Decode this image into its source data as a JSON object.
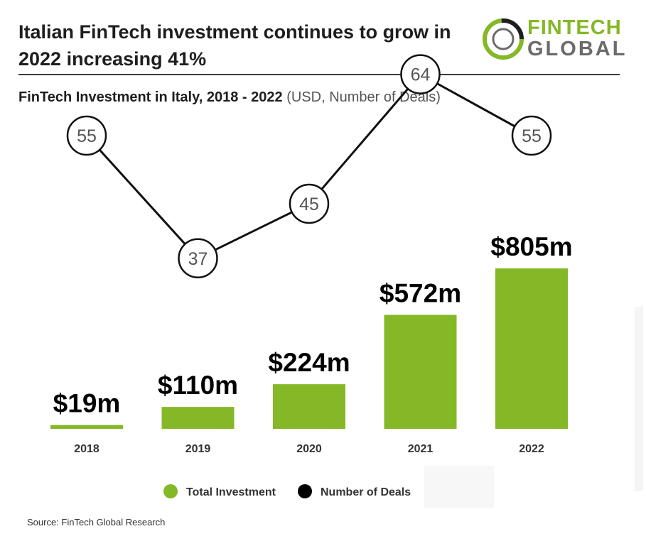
{
  "header": {
    "title": "Italian FinTech investment continues to grow in 2022 increasing 41%",
    "subtitle_main": "FinTech Investment in Italy, 2018 - 2022",
    "subtitle_units": "(USD, Number of Deals)"
  },
  "logo": {
    "word1": "FINTECH",
    "word2": "GLOBAL"
  },
  "colors": {
    "bar": "#84b826",
    "line": "#111111",
    "logo_ring": "#84b826"
  },
  "chart_data": {
    "type": "bar",
    "categories": [
      "2018",
      "2019",
      "2020",
      "2021",
      "2022"
    ],
    "series": [
      {
        "name": "Total Investment",
        "type": "bar",
        "values": [
          19,
          110,
          224,
          572,
          805
        ],
        "labels": [
          "$19m",
          "$110m",
          "$224m",
          "$572m",
          "$805m"
        ]
      },
      {
        "name": "Number of Deals",
        "type": "line",
        "values": [
          55,
          37,
          45,
          64,
          55
        ]
      }
    ],
    "legend": "bottom"
  },
  "source": "Source: FinTech Global Research"
}
